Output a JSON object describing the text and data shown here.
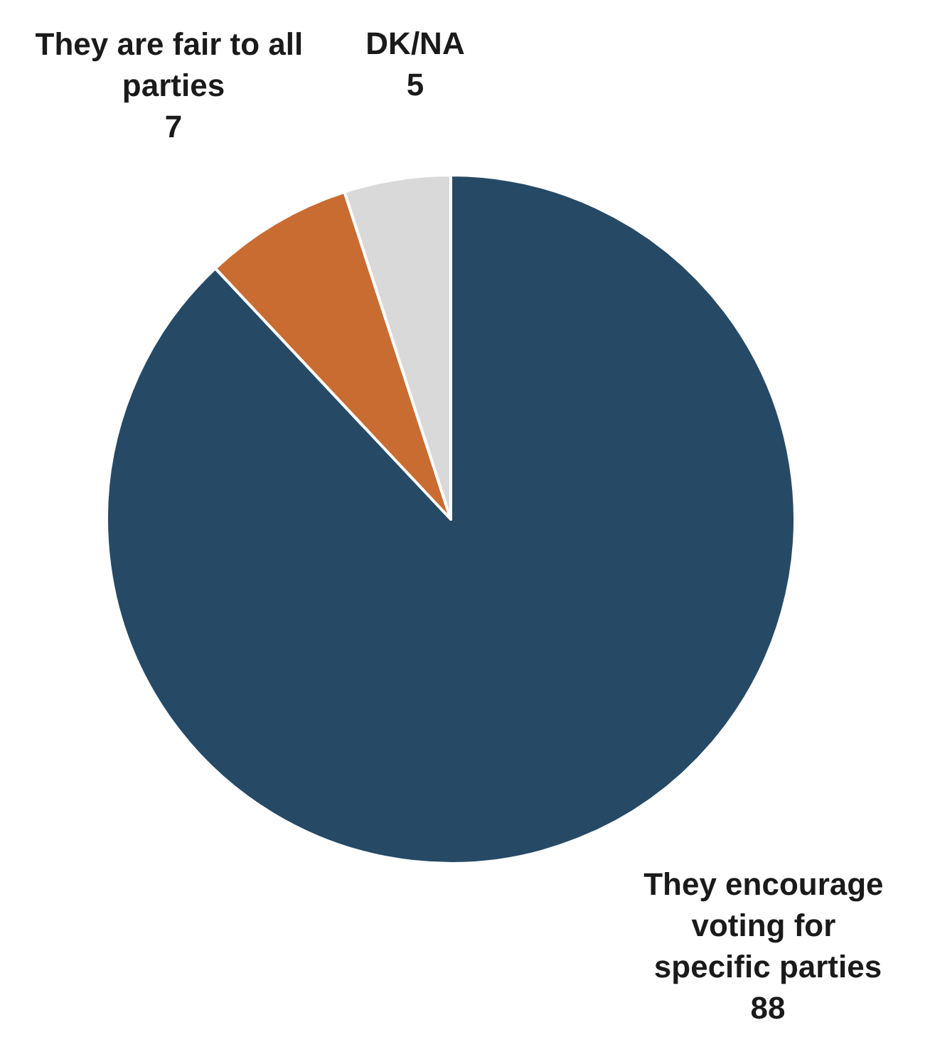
{
  "chart_data": {
    "type": "pie",
    "categories": [
      "They encourage voting for specific parties",
      "They are fair to all parties",
      "DK/NA"
    ],
    "values": [
      88,
      7,
      5
    ],
    "colors": [
      "#264a66",
      "#c86c32",
      "#d9d9d9"
    ],
    "data_labels": true,
    "legend": false
  }
}
